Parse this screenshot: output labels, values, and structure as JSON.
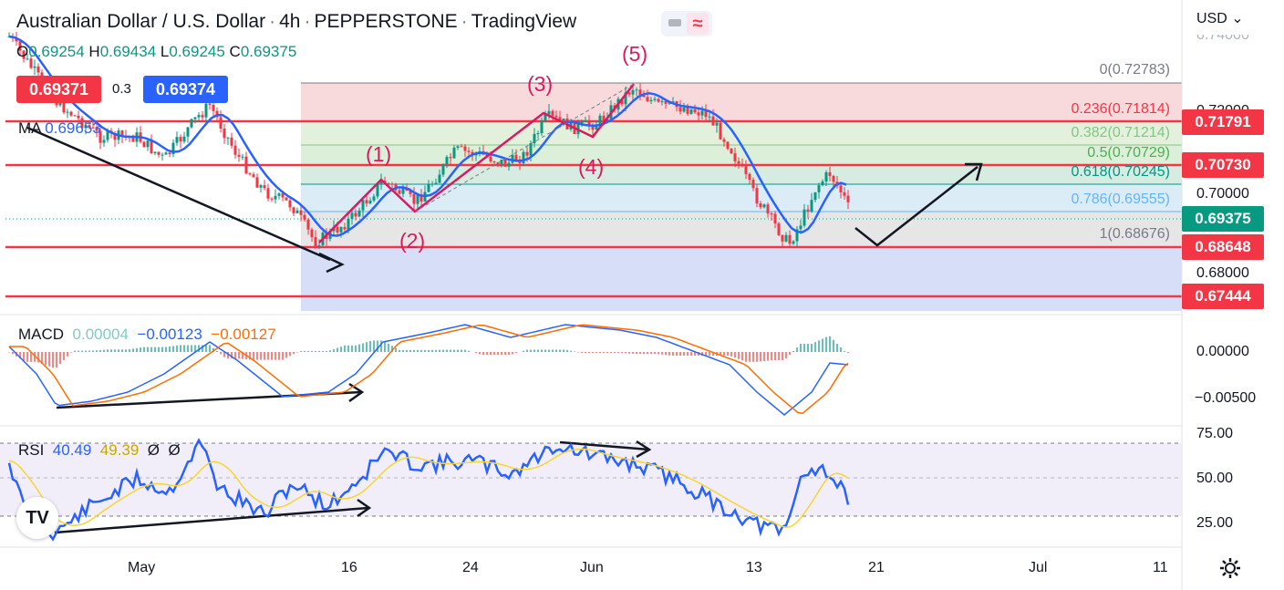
{
  "header": {
    "symbol": "Australian Dollar / U.S. Dollar",
    "interval": "4h",
    "broker": "PEPPERSTONE",
    "platform": "TradingView"
  },
  "ohlc": {
    "open_label": "O",
    "open": "0.69254",
    "high_label": "H",
    "high": "0.69434",
    "low_label": "L",
    "low": "0.69245",
    "close_label": "C",
    "close": "0.69375"
  },
  "quote": {
    "sell": "0.69371",
    "spread": "0.3",
    "buy": "0.69374"
  },
  "ma": {
    "label": "MA",
    "value": "0.69653"
  },
  "macd": {
    "label": "MACD",
    "hist": "0.00004",
    "macd": "−0.00123",
    "signal": "−0.00127"
  },
  "rsi": {
    "label": "RSI",
    "value": "40.49",
    "ma": "49.39",
    "p1": "Ø",
    "p2": "Ø"
  },
  "currency": "USD",
  "price_axis": [
    "0.74000",
    "0.72000",
    "0.70000",
    "0.68000"
  ],
  "price_labels": [
    {
      "text": "0.71791",
      "color": "#f23645"
    },
    {
      "text": "0.70730",
      "color": "#f23645"
    },
    {
      "text": "0.69375",
      "color": "#089981"
    },
    {
      "text": "0.68648",
      "color": "#f23645"
    },
    {
      "text": "0.67444",
      "color": "#f23645"
    }
  ],
  "fib_levels": [
    "0(0.72783)",
    "0.236(0.71814)",
    "0.382(0.71214)",
    "0.5(0.70729)",
    "0.618(0.70245)",
    "0.786(0.69555)",
    "1(0.68676)"
  ],
  "wave_labels": [
    "(1)",
    "(2)",
    "(3)",
    "(4)",
    "(5)"
  ],
  "macd_axis": [
    "0.00000",
    "−0.00500"
  ],
  "rsi_axis": [
    "75.00",
    "50.00",
    "25.00"
  ],
  "time_axis": [
    "May",
    "16",
    "24",
    "Jun",
    "13",
    "21",
    "Jul",
    "11"
  ],
  "colors": {
    "up": "#089981",
    "down": "#f23645",
    "ma": "#2962ff",
    "signal": "#ff6d00",
    "rsi": "#2962ff",
    "rsi_ma": "#f7d534",
    "wave": "#d81b60"
  }
}
